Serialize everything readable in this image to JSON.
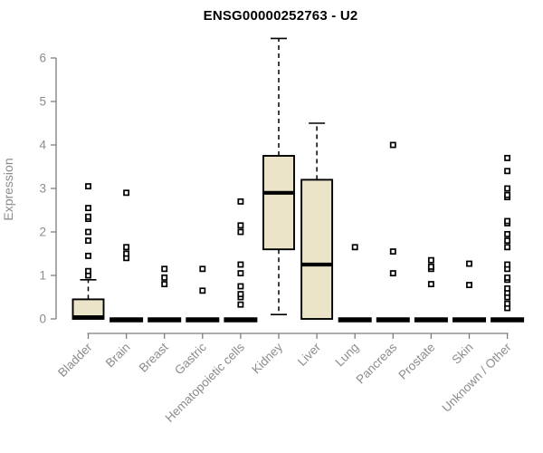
{
  "chart_data": {
    "type": "boxplot",
    "title": "ENSG00000252763 - U2",
    "ylabel": "Expression",
    "xlabel": "",
    "ylim": [
      0,
      6.5
    ],
    "yticks": [
      0,
      1,
      2,
      3,
      4,
      5,
      6
    ],
    "grid": false,
    "legend": "none",
    "categories": [
      "Bladder",
      "Brain",
      "Breast",
      "Gastric",
      "Hematopoietic cells",
      "Kidney",
      "Liver",
      "Lung",
      "Pancreas",
      "Prostate",
      "Skin",
      "Unknown / Other"
    ],
    "series": [
      {
        "category": "Bladder",
        "whisker_low": 0,
        "q1": 0,
        "median": 0.04,
        "q3": 0.45,
        "whisker_high": 0.9,
        "outliers": [
          1.0,
          1.1,
          1.45,
          1.8,
          2.0,
          2.3,
          2.35,
          2.55,
          3.05
        ]
      },
      {
        "category": "Brain",
        "whisker_low": 0,
        "q1": 0,
        "median": 0,
        "q3": 0,
        "whisker_high": 0,
        "outliers": [
          1.4,
          1.5,
          1.65,
          2.9
        ]
      },
      {
        "category": "Breast",
        "whisker_low": 0,
        "q1": 0,
        "median": 0,
        "q3": 0,
        "whisker_high": 0,
        "outliers": [
          0.8,
          0.95,
          1.15
        ]
      },
      {
        "category": "Gastric",
        "whisker_low": 0,
        "q1": 0,
        "median": 0,
        "q3": 0,
        "whisker_high": 0,
        "outliers": [
          0.65,
          1.15
        ]
      },
      {
        "category": "Hematopoietic cells",
        "whisker_low": 0,
        "q1": 0,
        "median": 0,
        "q3": 0,
        "whisker_high": 0,
        "outliers": [
          0.33,
          0.5,
          0.57,
          0.75,
          1.05,
          1.25,
          2.0,
          2.15,
          2.7
        ]
      },
      {
        "category": "Kidney",
        "whisker_low": 0.1,
        "q1": 1.6,
        "median": 2.9,
        "q3": 3.75,
        "whisker_high": 6.45,
        "outliers": []
      },
      {
        "category": "Liver",
        "whisker_low": 0,
        "q1": 0,
        "median": 1.25,
        "q3": 3.2,
        "whisker_high": 4.5,
        "outliers": []
      },
      {
        "category": "Lung",
        "whisker_low": 0,
        "q1": 0,
        "median": 0,
        "q3": 0,
        "whisker_high": 0,
        "outliers": [
          1.65
        ]
      },
      {
        "category": "Pancreas",
        "whisker_low": 0,
        "q1": 0,
        "median": 0,
        "q3": 0,
        "whisker_high": 0,
        "outliers": [
          1.05,
          1.55,
          4.0
        ]
      },
      {
        "category": "Prostate",
        "whisker_low": 0,
        "q1": 0,
        "median": 0,
        "q3": 0,
        "whisker_high": 0,
        "outliers": [
          0.8,
          1.15,
          1.2,
          1.35
        ]
      },
      {
        "category": "Skin",
        "whisker_low": 0,
        "q1": 0,
        "median": 0,
        "q3": 0,
        "whisker_high": 0,
        "outliers": [
          0.78,
          1.27
        ]
      },
      {
        "category": "Unknown / Other",
        "whisker_low": 0,
        "q1": 0,
        "median": 0,
        "q3": 0,
        "whisker_high": 0,
        "outliers": [
          0.25,
          0.35,
          0.5,
          0.6,
          0.7,
          0.9,
          0.95,
          1.15,
          1.25,
          1.65,
          1.8,
          1.95,
          2.2,
          2.25,
          2.8,
          2.85,
          3.0,
          3.4,
          3.7
        ]
      }
    ],
    "colors": {
      "box_fill": "#ece4c8",
      "box_border": "#000000",
      "median": "#000000",
      "outlier_fill": "#ffffff",
      "outlier_border": "#000000",
      "axis_line": "#7d7d7d",
      "axis_text": "#8c8c8c",
      "title_text": "#000000",
      "background": "#ffffff"
    }
  }
}
